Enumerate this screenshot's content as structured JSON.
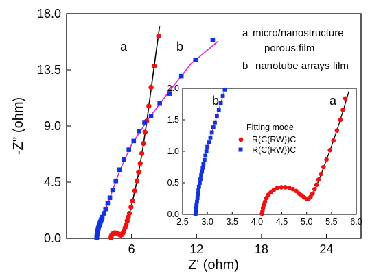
{
  "chart_data": [
    {
      "id": "main",
      "type": "scatter",
      "xlabel": "Z' (ohm)",
      "ylabel": "-Z'' (ohm)",
      "xlim": [
        0,
        27.2
      ],
      "ylim": [
        0,
        18
      ],
      "x_ticks": [
        "6",
        "12",
        "18",
        "24"
      ],
      "y_ticks": [
        "0.0",
        "4.5",
        "9.0",
        "13.5",
        "18.0"
      ],
      "grid": false,
      "legend_placement": "top-right",
      "legend": [
        {
          "key": "a",
          "text_lines": [
            "micro/nanostructure",
            "porous film"
          ]
        },
        {
          "key": "b",
          "text_lines": [
            "nanotube arrays film"
          ]
        }
      ],
      "curve_labels": [
        "a",
        "b"
      ],
      "series": [
        {
          "name": "a",
          "marker": "circle",
          "color": "#ee1111",
          "fit_color": "#000000",
          "points": [
            [
              4.1,
              0.05
            ],
            [
              4.12,
              0.15
            ],
            [
              4.16,
              0.25
            ],
            [
              4.22,
              0.32
            ],
            [
              4.3,
              0.38
            ],
            [
              4.4,
              0.42
            ],
            [
              4.5,
              0.43
            ],
            [
              4.6,
              0.42
            ],
            [
              4.7,
              0.39
            ],
            [
              4.8,
              0.34
            ],
            [
              4.9,
              0.29
            ],
            [
              5.0,
              0.26
            ],
            [
              5.1,
              0.3
            ],
            [
              5.2,
              0.42
            ],
            [
              5.3,
              0.6
            ],
            [
              5.4,
              0.85
            ],
            [
              5.5,
              1.1
            ],
            [
              5.6,
              1.4
            ],
            [
              5.7,
              1.7
            ],
            [
              5.8,
              2.0
            ],
            [
              5.95,
              2.5
            ],
            [
              6.1,
              3.0
            ],
            [
              6.3,
              3.8
            ],
            [
              6.5,
              4.6
            ],
            [
              6.65,
              5.3
            ],
            [
              6.8,
              6.0
            ],
            [
              6.95,
              6.8
            ],
            [
              7.1,
              7.6
            ],
            [
              7.25,
              8.5
            ],
            [
              7.4,
              9.4
            ],
            [
              7.6,
              10.6
            ],
            [
              7.8,
              12.1
            ],
            [
              8.1,
              13.8
            ],
            [
              8.5,
              16.2
            ]
          ],
          "fit_points": [
            [
              4.1,
              0.0
            ],
            [
              4.3,
              0.37
            ],
            [
              4.5,
              0.43
            ],
            [
              4.7,
              0.39
            ],
            [
              4.9,
              0.29
            ],
            [
              5.0,
              0.25
            ],
            [
              5.1,
              0.3
            ],
            [
              5.3,
              0.58
            ],
            [
              5.5,
              1.1
            ],
            [
              5.7,
              1.68
            ],
            [
              5.9,
              2.3
            ],
            [
              6.2,
              3.4
            ],
            [
              6.6,
              5.0
            ],
            [
              7.0,
              7.0
            ],
            [
              7.4,
              9.3
            ],
            [
              7.8,
              11.9
            ],
            [
              8.2,
              14.5
            ],
            [
              8.6,
              17.0
            ]
          ]
        },
        {
          "name": "b",
          "marker": "square",
          "color": "#1133dd",
          "fit_color": "#e020e0",
          "points": [
            [
              2.78,
              0.05
            ],
            [
              2.79,
              0.12
            ],
            [
              2.8,
              0.2
            ],
            [
              2.81,
              0.3
            ],
            [
              2.83,
              0.4
            ],
            [
              2.85,
              0.5
            ],
            [
              2.87,
              0.6
            ],
            [
              2.9,
              0.7
            ],
            [
              2.93,
              0.8
            ],
            [
              2.96,
              0.9
            ],
            [
              2.99,
              1.0
            ],
            [
              3.03,
              1.1
            ],
            [
              3.08,
              1.2
            ],
            [
              3.12,
              1.3
            ],
            [
              3.17,
              1.4
            ],
            [
              3.22,
              1.52
            ],
            [
              3.3,
              1.7
            ],
            [
              3.45,
              2.0
            ],
            [
              3.6,
              2.35
            ],
            [
              3.8,
              2.8
            ],
            [
              4.0,
              3.25
            ],
            [
              4.25,
              3.85
            ],
            [
              4.55,
              4.6
            ],
            [
              4.9,
              5.5
            ],
            [
              5.3,
              6.3
            ],
            [
              5.75,
              7.1
            ],
            [
              6.2,
              7.8
            ],
            [
              6.7,
              8.6
            ],
            [
              7.2,
              9.3
            ],
            [
              7.8,
              9.8
            ],
            [
              8.6,
              10.8
            ],
            [
              9.5,
              11.6
            ],
            [
              10.6,
              13.0
            ],
            [
              11.9,
              14.3
            ],
            [
              13.5,
              15.9
            ]
          ],
          "fit_points": [
            [
              2.76,
              0.0
            ],
            [
              2.85,
              0.5
            ],
            [
              2.99,
              1.0
            ],
            [
              3.17,
              1.4
            ],
            [
              3.45,
              2.0
            ],
            [
              4.0,
              3.25
            ],
            [
              4.9,
              5.4
            ],
            [
              6.0,
              7.5
            ],
            [
              7.5,
              9.5
            ],
            [
              9.5,
              11.8
            ],
            [
              11.5,
              14.0
            ],
            [
              14.0,
              15.8
            ]
          ]
        }
      ]
    },
    {
      "id": "inset",
      "type": "scatter",
      "title": "Fitting mode",
      "xlim": [
        2.5,
        6.0
      ],
      "ylim": [
        0.0,
        2.0
      ],
      "x_ticks": [
        "2.5",
        "3.0",
        "3.5",
        "4.0",
        "4.5",
        "5.0",
        "5.5",
        "6.0"
      ],
      "y_ticks": [
        "0.0",
        "0.5",
        "1.0",
        "1.5",
        "2.0"
      ],
      "grid": false,
      "legend_placement": "top-left",
      "legend": [
        {
          "marker": "circle",
          "color": "#ee1111",
          "text": "R(C(RW))C"
        },
        {
          "marker": "square",
          "color": "#1133dd",
          "text": "R(C(RW))C"
        }
      ],
      "curve_labels": [
        "a",
        "b"
      ],
      "series": [
        {
          "name": "a",
          "marker": "circle",
          "color": "#ee1111",
          "fit_color": "#000000",
          "points": [
            [
              4.1,
              0.01
            ],
            [
              4.11,
              0.05
            ],
            [
              4.12,
              0.1
            ],
            [
              4.14,
              0.15
            ],
            [
              4.16,
              0.2
            ],
            [
              4.19,
              0.26
            ],
            [
              4.23,
              0.31
            ],
            [
              4.28,
              0.35
            ],
            [
              4.34,
              0.39
            ],
            [
              4.41,
              0.42
            ],
            [
              4.49,
              0.43
            ],
            [
              4.57,
              0.43
            ],
            [
              4.65,
              0.42
            ],
            [
              4.72,
              0.4
            ],
            [
              4.79,
              0.37
            ],
            [
              4.85,
              0.33
            ],
            [
              4.9,
              0.3
            ],
            [
              4.95,
              0.27
            ],
            [
              5.0,
              0.25
            ],
            [
              5.04,
              0.25
            ],
            [
              5.08,
              0.28
            ],
            [
              5.12,
              0.33
            ],
            [
              5.16,
              0.4
            ],
            [
              5.2,
              0.47
            ],
            [
              5.24,
              0.55
            ],
            [
              5.29,
              0.64
            ],
            [
              5.34,
              0.75
            ],
            [
              5.4,
              0.87
            ],
            [
              5.47,
              1.02
            ],
            [
              5.54,
              1.17
            ],
            [
              5.61,
              1.33
            ],
            [
              5.68,
              1.5
            ],
            [
              5.73,
              1.66
            ],
            [
              5.78,
              1.84
            ]
          ],
          "fit_points": [
            [
              4.1,
              0.0
            ],
            [
              4.15,
              0.17
            ],
            [
              4.25,
              0.33
            ],
            [
              4.4,
              0.42
            ],
            [
              4.55,
              0.43
            ],
            [
              4.7,
              0.4
            ],
            [
              4.85,
              0.33
            ],
            [
              5.0,
              0.25
            ],
            [
              5.08,
              0.27
            ],
            [
              5.16,
              0.38
            ],
            [
              5.25,
              0.55
            ],
            [
              5.35,
              0.76
            ],
            [
              5.5,
              1.08
            ],
            [
              5.65,
              1.43
            ],
            [
              5.78,
              1.76
            ],
            [
              5.85,
              1.95
            ]
          ]
        },
        {
          "name": "b",
          "marker": "square",
          "color": "#1133dd",
          "fit_color": "#e020e0",
          "points": [
            [
              2.76,
              0.01
            ],
            [
              2.765,
              0.05
            ],
            [
              2.77,
              0.1
            ],
            [
              2.78,
              0.15
            ],
            [
              2.79,
              0.2
            ],
            [
              2.8,
              0.26
            ],
            [
              2.81,
              0.32
            ],
            [
              2.82,
              0.38
            ],
            [
              2.83,
              0.44
            ],
            [
              2.845,
              0.5
            ],
            [
              2.86,
              0.56
            ],
            [
              2.875,
              0.62
            ],
            [
              2.89,
              0.68
            ],
            [
              2.905,
              0.74
            ],
            [
              2.92,
              0.8
            ],
            [
              2.94,
              0.86
            ],
            [
              2.96,
              0.93
            ],
            [
              2.98,
              1.0
            ],
            [
              3.0,
              1.07
            ],
            [
              3.03,
              1.14
            ],
            [
              3.06,
              1.22
            ],
            [
              3.09,
              1.3
            ],
            [
              3.12,
              1.38
            ],
            [
              3.15,
              1.46
            ],
            [
              3.19,
              1.56
            ],
            [
              3.23,
              1.66
            ],
            [
              3.27,
              1.77
            ],
            [
              3.31,
              1.88
            ],
            [
              3.35,
              1.98
            ]
          ],
          "fit_points": [
            [
              2.755,
              0.0
            ],
            [
              2.8,
              0.27
            ],
            [
              2.85,
              0.52
            ],
            [
              2.92,
              0.8
            ],
            [
              3.0,
              1.07
            ],
            [
              3.1,
              1.33
            ],
            [
              3.2,
              1.58
            ],
            [
              3.3,
              1.85
            ],
            [
              3.36,
              2.0
            ]
          ]
        }
      ]
    }
  ]
}
